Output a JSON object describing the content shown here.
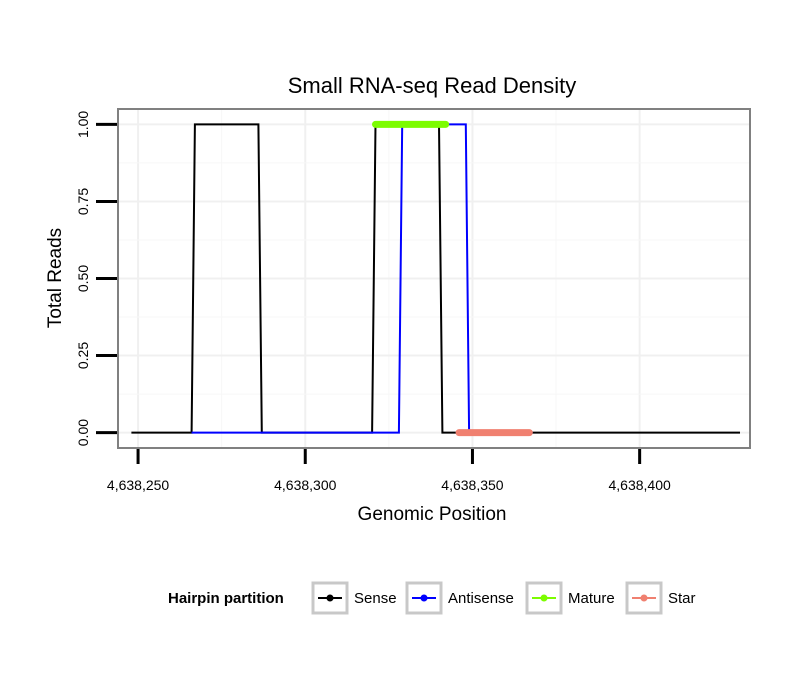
{
  "chart_data": {
    "type": "line",
    "title": "Small RNA-seq Read Density",
    "xlabel": "Genomic Position",
    "ylabel": "Total Reads",
    "xlim": [
      4638244,
      4638433
    ],
    "ylim": [
      -0.05,
      1.05
    ],
    "xticks": [
      4638250,
      4638300,
      4638350,
      4638400
    ],
    "xtick_labels": [
      "4,638,250",
      "4,638,300",
      "4,638,350",
      "4,638,400"
    ],
    "yticks": [
      0,
      0.25,
      0.5,
      0.75,
      1
    ],
    "ytick_labels": [
      "0.00",
      "0.25",
      "0.50",
      "0.75",
      "1.00"
    ],
    "grid": true,
    "legend": {
      "title": "Hairpin partition",
      "position": "bottom",
      "entries": [
        "Sense",
        "Antisense",
        "Mature",
        "Star"
      ]
    },
    "series": [
      {
        "name": "Sense",
        "color": "#000000",
        "x": [
          4638248,
          4638266,
          4638267,
          4638286,
          4638287,
          4638320,
          4638321,
          4638340,
          4638341,
          4638430
        ],
        "y": [
          0,
          0,
          1,
          1,
          0,
          0,
          1,
          1,
          0,
          0
        ]
      },
      {
        "name": "Antisense",
        "color": "#0000ff",
        "x": [
          4638266,
          4638328,
          4638329,
          4638348,
          4638349,
          4638368
        ],
        "y": [
          0,
          0,
          1,
          1,
          0,
          0
        ]
      },
      {
        "name": "Mature",
        "color": "#7cfc00",
        "x": [
          4638321,
          4638342
        ],
        "y": [
          1,
          1
        ]
      },
      {
        "name": "Star",
        "color": "#f08070",
        "x": [
          4638346,
          4638367
        ],
        "y": [
          0,
          0
        ]
      }
    ]
  }
}
